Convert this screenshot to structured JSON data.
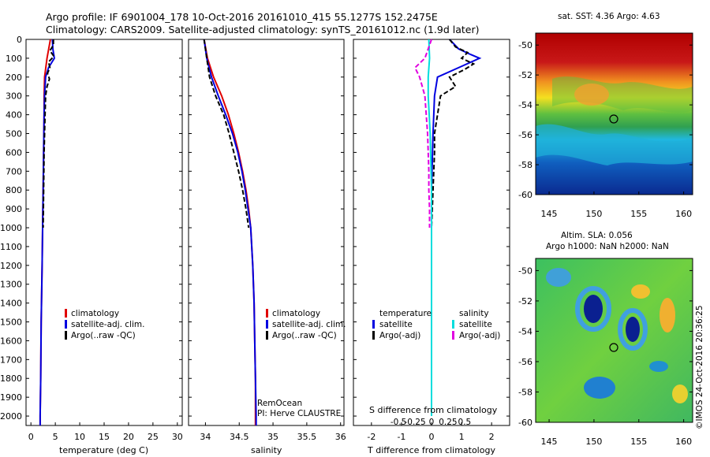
{
  "header": {
    "title_line1": "Argo profile: IF 6901004_178 10-Oct-2016 20161010_415 55.1277S 152.2475E",
    "title_line2": "Climatology: CARS2009. Satellite-adjusted climatology: synTS_20161012.nc (1.9d later)"
  },
  "colors": {
    "climatology": "#e00000",
    "satellite_adj": "#0000e0",
    "argo": "#000000",
    "salinity_satellite": "#00dddd",
    "salinity_argo": "#e000e0"
  },
  "depth_ticks": [
    "0",
    "100",
    "200",
    "300",
    "400",
    "500",
    "600",
    "700",
    "800",
    "900",
    "1000",
    "1100",
    "1200",
    "1300",
    "1400",
    "1500",
    "1600",
    "1700",
    "1800",
    "1900",
    "2000"
  ],
  "panels": {
    "temperature": {
      "xlabel": "temperature (deg C)",
      "xticks": [
        "0",
        "5",
        "10",
        "15",
        "20",
        "25",
        "30"
      ],
      "legend": [
        "climatology",
        "satellite-adj. clim.",
        "Argo(..raw -QC)"
      ]
    },
    "salinity": {
      "xlabel": "salinity",
      "xticks": [
        "34",
        "34.5",
        "35",
        "35.5",
        "36"
      ],
      "legend": [
        "climatology",
        "satellite-adj. clim.",
        "Argo(..raw -QC)"
      ],
      "note1": "RemOcean",
      "note2": "PI: Herve CLAUSTRE"
    },
    "difference": {
      "xlabel": "T difference from climatology",
      "top_label": "S difference from climatology",
      "s_ticks": [
        "-0.5",
        "-0.25",
        "0",
        "0.25",
        "0.5"
      ],
      "t_ticks": [
        "-2",
        "-1",
        "0",
        "1",
        "2"
      ],
      "legend_temp_title": "temperature",
      "legend_sal_title": "salinity",
      "legend_temp": [
        "satellite",
        "Argo(-adj)"
      ],
      "legend_sal": [
        "satellite",
        "Argo(-adj)"
      ]
    }
  },
  "maps": {
    "sst_title": "sat. SST: 4.36 Argo: 4.63",
    "sla_title1": "Altim. SLA: 0.056",
    "sla_title2": "Argo h1000: NaN h2000: NaN",
    "yticks": [
      "-50",
      "-52",
      "-54",
      "-56",
      "-58",
      "-60"
    ],
    "xticks": [
      "145",
      "150",
      "155",
      "160"
    ]
  },
  "side_label": "©IMOS 24-Oct-2016 20:36:25",
  "chart_data": [
    {
      "type": "line",
      "title": "temperature",
      "xlabel": "temperature (deg C)",
      "ylabel": "",
      "xlim": [
        -1,
        31
      ],
      "ylim": [
        2050,
        0
      ],
      "series": [
        {
          "name": "climatology",
          "depth": [
            0,
            100,
            200,
            300,
            400,
            600,
            800,
            1000,
            1200,
            1500,
            1800,
            2000,
            2050
          ],
          "values": [
            4.0,
            3.3,
            2.8,
            2.7,
            2.7,
            2.6,
            2.5,
            2.4,
            2.3,
            2.1,
            2.0,
            1.9,
            1.9
          ]
        },
        {
          "name": "satellite-adj. clim.",
          "depth": [
            0,
            50,
            100,
            150,
            200,
            300,
            400,
            600,
            800,
            1000,
            1200,
            1500,
            1800,
            2000,
            2050
          ],
          "values": [
            4.4,
            4.5,
            4.8,
            3.6,
            3.0,
            2.8,
            2.7,
            2.6,
            2.5,
            2.4,
            2.3,
            2.1,
            2.0,
            1.9,
            1.9
          ]
        },
        {
          "name": "Argo(..raw -QC)",
          "depth": [
            0,
            30,
            60,
            90,
            120,
            150,
            180,
            210,
            250,
            300,
            400,
            600,
            800,
            1000
          ],
          "values": [
            4.6,
            4.6,
            3.9,
            4.7,
            3.6,
            3.9,
            3.4,
            3.8,
            3.3,
            3.0,
            2.9,
            2.7,
            2.6,
            2.5
          ]
        }
      ]
    },
    {
      "type": "line",
      "title": "salinity",
      "xlabel": "salinity",
      "ylabel": "",
      "xlim": [
        33.75,
        36.05
      ],
      "ylim": [
        2050,
        0
      ],
      "series": [
        {
          "name": "climatology",
          "depth": [
            0,
            100,
            200,
            300,
            400,
            500,
            600,
            700,
            800,
            900,
            1000,
            1200,
            1400,
            1600,
            1800,
            2000,
            2050
          ],
          "values": [
            33.98,
            34.03,
            34.12,
            34.24,
            34.34,
            34.42,
            34.49,
            34.55,
            34.6,
            34.64,
            34.67,
            34.7,
            34.72,
            34.73,
            34.74,
            34.74,
            34.74
          ]
        },
        {
          "name": "satellite-adj. clim.",
          "depth": [
            0,
            100,
            200,
            300,
            400,
            500,
            600,
            700,
            800,
            900,
            1000,
            1200,
            1400,
            1600,
            1800,
            2000,
            2050
          ],
          "values": [
            33.98,
            34.02,
            34.09,
            34.19,
            34.3,
            34.4,
            34.48,
            34.54,
            34.59,
            34.63,
            34.67,
            34.7,
            34.72,
            34.73,
            34.74,
            34.75,
            34.75
          ]
        },
        {
          "name": "Argo(..raw -QC)",
          "depth": [
            0,
            100,
            200,
            300,
            400,
            500,
            600,
            700,
            800,
            900,
            1000
          ],
          "values": [
            33.98,
            34.02,
            34.06,
            34.15,
            34.27,
            34.35,
            34.42,
            34.49,
            34.55,
            34.6,
            34.64
          ]
        }
      ]
    },
    {
      "type": "line",
      "title": "difference from climatology",
      "xlabel": "T difference from climatology",
      "ylabel": "",
      "xlim": [
        -2.6,
        2.6
      ],
      "ylim": [
        2050,
        0
      ],
      "series": [
        {
          "name": "temperature satellite",
          "depth": [
            0,
            50,
            80,
            100,
            150,
            200,
            300,
            500,
            800,
            1000,
            1200,
            1500,
            2000
          ],
          "values": [
            0.6,
            0.9,
            1.3,
            1.6,
            0.9,
            0.2,
            0.1,
            0.05,
            0.0,
            0.0,
            0.0,
            0.0,
            0.0
          ]
        },
        {
          "name": "temperature Argo(-adj)",
          "depth": [
            0,
            40,
            70,
            100,
            130,
            160,
            200,
            250,
            300,
            400,
            500,
            600,
            800,
            1000
          ],
          "values": [
            0.6,
            0.8,
            1.2,
            1.0,
            1.4,
            1.1,
            0.6,
            0.8,
            0.3,
            0.2,
            0.1,
            0.1,
            0.05,
            0.0
          ]
        },
        {
          "name": "salinity satellite",
          "depth": [
            0,
            100,
            200,
            300,
            500,
            800,
            1000,
            1500,
            2000
          ],
          "values": [
            -0.04,
            -0.03,
            -0.05,
            -0.05,
            -0.02,
            0.0,
            0.0,
            0.0,
            0.0
          ]
        },
        {
          "name": "salinity Argo(-adj)",
          "depth": [
            0,
            100,
            150,
            200,
            300,
            400,
            500,
            600,
            700,
            800,
            900,
            1000
          ],
          "values": [
            0.0,
            -0.1,
            -0.25,
            -0.18,
            -0.1,
            -0.08,
            -0.06,
            -0.05,
            -0.04,
            -0.04,
            -0.03,
            -0.03
          ]
        }
      ]
    }
  ]
}
